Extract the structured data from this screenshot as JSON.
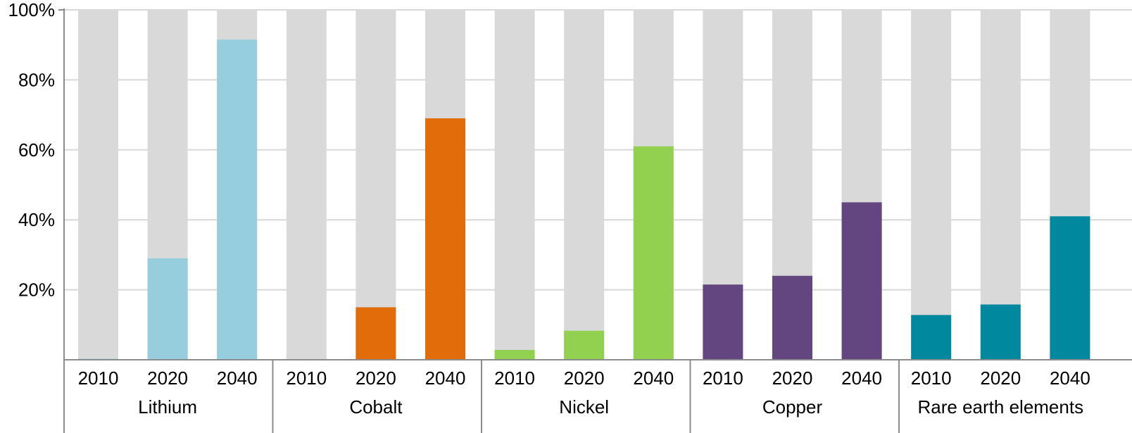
{
  "chart_data": {
    "type": "bar",
    "stacked_100": true,
    "title": "",
    "xlabel": "",
    "ylabel": "",
    "ylim": [
      0,
      100
    ],
    "yticks": [
      "20%",
      "40%",
      "60%",
      "80%",
      "100%"
    ],
    "ytick_values": [
      20,
      40,
      60,
      80,
      100
    ],
    "grid": true,
    "legend": "none",
    "groups": [
      {
        "name": "Lithium",
        "color": "#96cedd",
        "bars": [
          {
            "year": "2010",
            "value": 0.3
          },
          {
            "year": "2020",
            "value": 29
          },
          {
            "year": "2040",
            "value": 91.5
          }
        ]
      },
      {
        "name": "Cobalt",
        "color": "#e36c0a",
        "bars": [
          {
            "year": "2010",
            "value": 0
          },
          {
            "year": "2020",
            "value": 15
          },
          {
            "year": "2040",
            "value": 69
          }
        ]
      },
      {
        "name": "Nickel",
        "color": "#92d050",
        "bars": [
          {
            "year": "2010",
            "value": 2.8
          },
          {
            "year": "2020",
            "value": 8.3
          },
          {
            "year": "2040",
            "value": 61
          }
        ]
      },
      {
        "name": "Copper",
        "color": "#63467f",
        "bars": [
          {
            "year": "2010",
            "value": 21.5
          },
          {
            "year": "2020",
            "value": 24
          },
          {
            "year": "2040",
            "value": 45
          }
        ]
      },
      {
        "name": "Rare earth elements",
        "color": "#00899e",
        "bars": [
          {
            "year": "2010",
            "value": 12.8
          },
          {
            "year": "2020",
            "value": 15.8
          },
          {
            "year": "2040",
            "value": 41
          }
        ]
      }
    ],
    "remainder_color": "#d9d9d9",
    "grid_color": "#d9d9d9",
    "axis_color": "#8c8c8c"
  }
}
